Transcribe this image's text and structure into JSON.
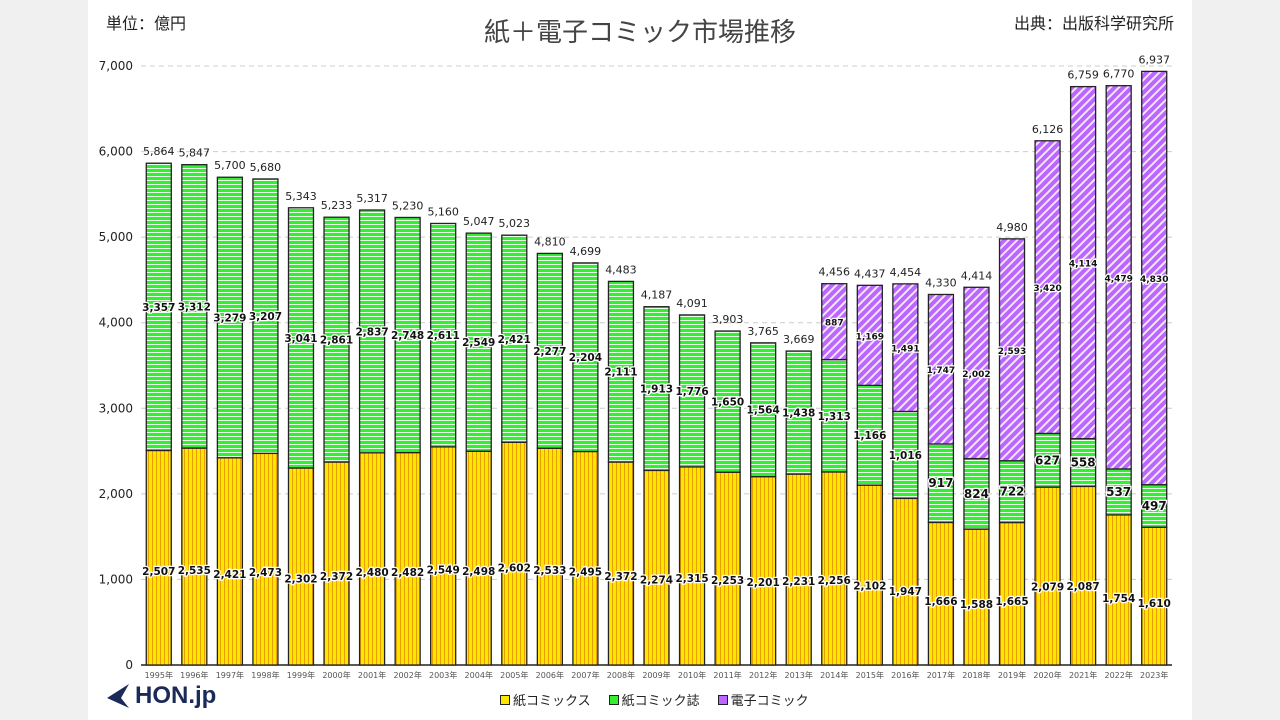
{
  "header": {
    "unit": "単位：億円",
    "title": "紙＋電子コミック市場推移",
    "source": "出典：出版科学研究所"
  },
  "logo": "HON.jp",
  "chart_data": {
    "type": "stacked-bar",
    "title": "紙＋電子コミック市場推移",
    "ylabel": "単位：億円",
    "ylim": [
      0,
      7000
    ],
    "yticks": [
      "0",
      "1,000",
      "2,000",
      "3,000",
      "4,000",
      "5,000",
      "6,000",
      "7,000"
    ],
    "grid": true,
    "legend_position": "bottom",
    "categories": [
      "1995年",
      "1996年",
      "1997年",
      "1998年",
      "1999年",
      "2000年",
      "2001年",
      "2002年",
      "2003年",
      "2004年",
      "2005年",
      "2006年",
      "2007年",
      "2008年",
      "2009年",
      "2010年",
      "2011年",
      "2012年",
      "2013年",
      "2014年",
      "2015年",
      "2016年",
      "2017年",
      "2018年",
      "2019年",
      "2020年",
      "2021年",
      "2022年",
      "2023年"
    ],
    "series": [
      {
        "name": "紙コミックス",
        "color": "#ffe600",
        "values": [
          2507,
          2535,
          2421,
          2473,
          2302,
          2372,
          2480,
          2482,
          2549,
          2498,
          2602,
          2533,
          2495,
          2372,
          2274,
          2315,
          2253,
          2201,
          2231,
          2256,
          2102,
          1947,
          1666,
          1588,
          1665,
          2079,
          2087,
          1754,
          1610
        ]
      },
      {
        "name": "紙コミック誌",
        "color": "#33ee33",
        "values": [
          3357,
          3312,
          3279,
          3207,
          3041,
          2861,
          2837,
          2748,
          2611,
          2549,
          2421,
          2277,
          2204,
          2111,
          1913,
          1776,
          1650,
          1564,
          1438,
          1313,
          1166,
          1016,
          917,
          824,
          722,
          627,
          558,
          537,
          497
        ]
      },
      {
        "name": "電子コミック",
        "color": "#bb66ff",
        "values": [
          null,
          null,
          null,
          null,
          null,
          null,
          null,
          null,
          null,
          null,
          null,
          null,
          null,
          null,
          null,
          null,
          null,
          null,
          null,
          887,
          1169,
          1491,
          1747,
          2002,
          2593,
          3420,
          4114,
          4479,
          4830
        ]
      }
    ],
    "totals": [
      5864,
      5847,
      5700,
      5680,
      5343,
      5233,
      5317,
      5230,
      5160,
      5047,
      5023,
      4810,
      4699,
      4483,
      4187,
      4091,
      3903,
      3765,
      3669,
      4456,
      4437,
      4454,
      4330,
      4414,
      4980,
      6126,
      6759,
      6770,
      6937
    ]
  }
}
